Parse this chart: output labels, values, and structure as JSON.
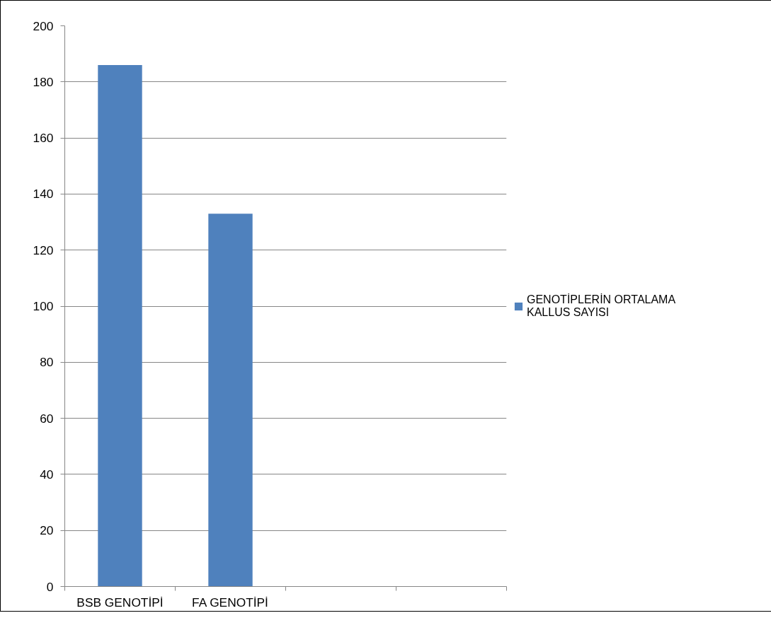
{
  "chart_data": {
    "type": "bar",
    "categories": [
      "BSB GENOTİPİ",
      "FA GENOTİPİ",
      null,
      null
    ],
    "series": [
      {
        "name": "GENOTİPLERİN ORTALAMA KALLUS SAYISI",
        "color": "#4f81bd",
        "values": [
          186,
          133,
          null,
          null
        ]
      }
    ],
    "ylim": [
      0,
      200
    ],
    "yticks": [
      0,
      20,
      40,
      60,
      80,
      100,
      120,
      140,
      160,
      180,
      200
    ],
    "grid": "y",
    "legend": "right"
  }
}
